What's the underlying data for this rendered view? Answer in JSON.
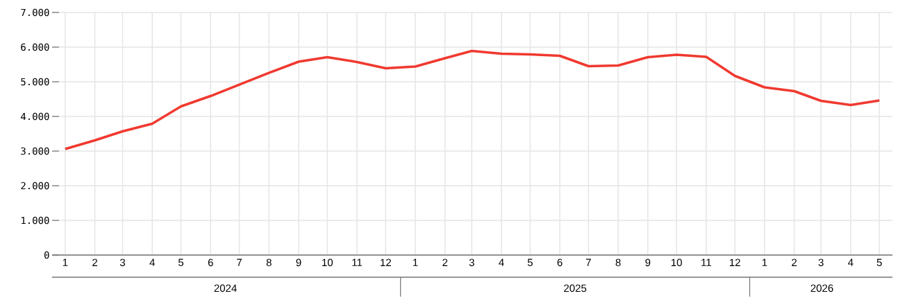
{
  "chart_data": {
    "type": "line",
    "x": [
      "2024-01",
      "2024-02",
      "2024-03",
      "2024-04",
      "2024-05",
      "2024-06",
      "2024-07",
      "2024-08",
      "2024-09",
      "2024-10",
      "2024-11",
      "2024-12",
      "2025-01",
      "2025-02",
      "2025-03",
      "2025-04",
      "2025-05",
      "2025-06",
      "2025-07",
      "2025-08",
      "2025-09",
      "2025-10",
      "2025-11",
      "2025-12",
      "2026-01",
      "2026-02",
      "2026-03",
      "2026-04",
      "2026-05"
    ],
    "series": [
      {
        "color": "#f0392f",
        "values": [
          3060,
          3310,
          3570,
          3790,
          4290,
          4590,
          4920,
          5260,
          5580,
          5710,
          5570,
          5390,
          5440,
          5680,
          5890,
          5810,
          5790,
          5750,
          5450,
          5470,
          5710,
          5780,
          5720,
          5170,
          4840,
          4730,
          4450,
          4330,
          4460
        ]
      }
    ],
    "xlim": [
      "2024-01",
      "2026-05"
    ],
    "xticks": [
      {
        "value": "2024-01",
        "label": "1"
      },
      {
        "value": "2024-02",
        "label": "2"
      },
      {
        "value": "2024-03",
        "label": "3"
      },
      {
        "value": "2024-04",
        "label": "4"
      },
      {
        "value": "2024-05",
        "label": "5"
      },
      {
        "value": "2024-06",
        "label": "6"
      },
      {
        "value": "2024-07",
        "label": "7"
      },
      {
        "value": "2024-08",
        "label": "8"
      },
      {
        "value": "2024-09",
        "label": "9"
      },
      {
        "value": "2024-10",
        "label": "10"
      },
      {
        "value": "2024-11",
        "label": "11"
      },
      {
        "value": "2024-12",
        "label": "12"
      },
      {
        "value": "2025-01",
        "label": "1"
      },
      {
        "value": "2025-02",
        "label": "2"
      },
      {
        "value": "2025-03",
        "label": "3"
      },
      {
        "value": "2025-04",
        "label": "4"
      },
      {
        "value": "2025-05",
        "label": "5"
      },
      {
        "value": "2025-06",
        "label": "6"
      },
      {
        "value": "2025-07",
        "label": "7"
      },
      {
        "value": "2025-08",
        "label": "8"
      },
      {
        "value": "2025-09",
        "label": "9"
      },
      {
        "value": "2025-10",
        "label": "10"
      },
      {
        "value": "2025-11",
        "label": "11"
      },
      {
        "value": "2025-12",
        "label": "12"
      },
      {
        "value": "2026-01",
        "label": "1"
      },
      {
        "value": "2026-02",
        "label": "2"
      },
      {
        "value": "2026-03",
        "label": "3"
      },
      {
        "value": "2026-04",
        "label": "4"
      },
      {
        "value": "2026-05",
        "label": "5"
      }
    ],
    "ylim": [
      0,
      7000
    ],
    "yticks": [
      {
        "value": 0,
        "label": "0"
      },
      {
        "value": 1000,
        "label": "1.000"
      },
      {
        "value": 2000,
        "label": "2.000"
      },
      {
        "value": 3000,
        "label": "3.000"
      },
      {
        "value": 4000,
        "label": "4.000"
      },
      {
        "value": 5000,
        "label": "5.000"
      },
      {
        "value": 6000,
        "label": "6.000"
      },
      {
        "value": 7000,
        "label": "7.000"
      }
    ],
    "annotations": [
      "2024",
      "2025",
      "2026"
    ],
    "grid": true,
    "legend": false,
    "marker": "none",
    "line_style": "solid"
  }
}
